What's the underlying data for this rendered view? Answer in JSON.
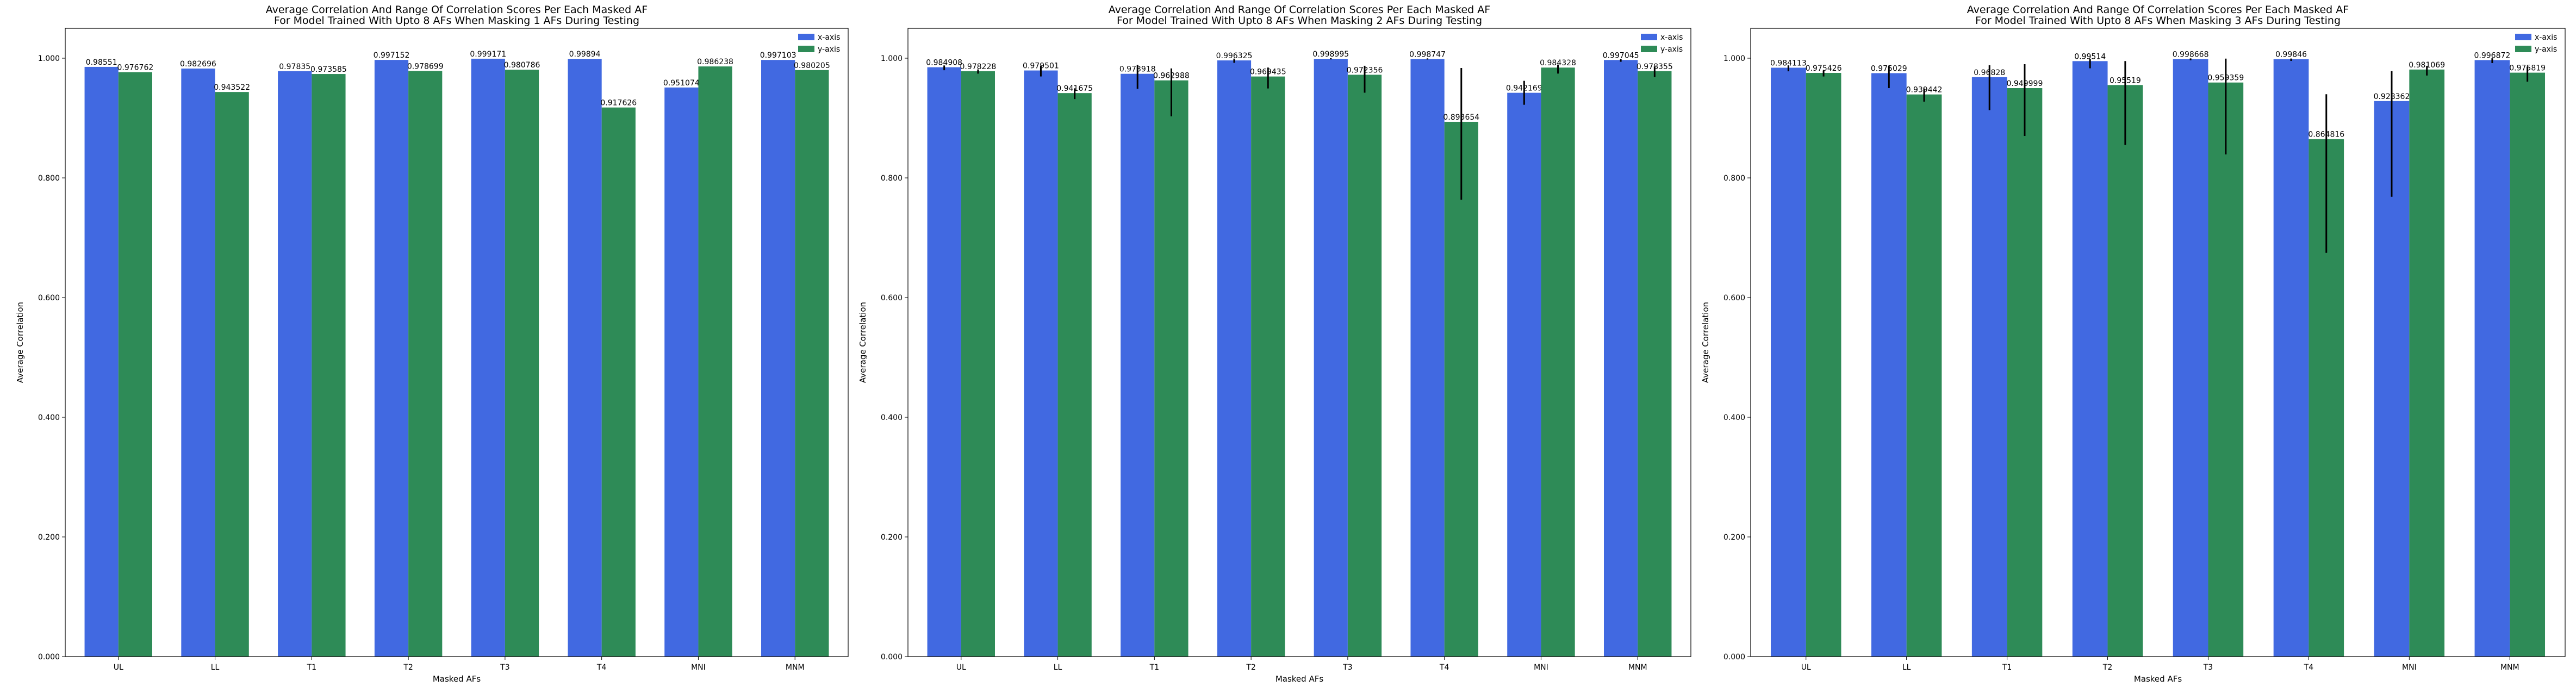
{
  "chart_data": [
    {
      "type": "bar",
      "title": "Average Correlation And Range Of Correlation Scores Per Each Masked AF",
      "subtitle": "For Model Trained With Upto 8 AFs When Masking 1 AFs During Testing",
      "xlabel": "Masked AFs",
      "ylabel": "Average Correlation",
      "categories": [
        "UL",
        "LL",
        "T1",
        "T2",
        "T3",
        "T4",
        "MNI",
        "MNM"
      ],
      "ylim": [
        0,
        1.05
      ],
      "yticks": [
        "0.000",
        "0.200",
        "0.400",
        "0.600",
        "0.800",
        "1.000"
      ],
      "legend_position": "top-right",
      "series": [
        {
          "name": "x-axis",
          "color": "#4169e1",
          "values": [
            0.98551,
            0.982696,
            0.97835,
            0.997152,
            0.999171,
            0.99894,
            0.951074,
            0.997103
          ],
          "labels": [
            "0.98551",
            "0.982696",
            "0.97835",
            "0.997152",
            "0.999171",
            "0.99894",
            "0.951074",
            "0.997103"
          ],
          "errors": [
            [
              0,
              0
            ],
            [
              0,
              0
            ],
            [
              0,
              0
            ],
            [
              0,
              0
            ],
            [
              0,
              0
            ],
            [
              0,
              0
            ],
            [
              0,
              0
            ],
            [
              0,
              0
            ]
          ]
        },
        {
          "name": "y-axis",
          "color": "#2e8b57",
          "values": [
            0.976762,
            0.943522,
            0.973585,
            0.978699,
            0.980786,
            0.917626,
            0.986238,
            0.980205
          ],
          "labels": [
            "0.976762",
            "0.943522",
            "0.973585",
            "0.978699",
            "0.980786",
            "0.917626",
            "0.986238",
            "0.980205"
          ],
          "errors": [
            [
              0,
              0
            ],
            [
              0,
              0
            ],
            [
              0,
              0
            ],
            [
              0,
              0
            ],
            [
              0,
              0
            ],
            [
              0,
              0
            ],
            [
              0,
              0
            ],
            [
              0,
              0
            ]
          ]
        }
      ]
    },
    {
      "type": "bar",
      "title": "Average Correlation And Range Of Correlation Scores Per Each Masked AF",
      "subtitle": "For Model Trained With Upto 8 AFs When Masking 2 AFs During Testing",
      "xlabel": "Masked AFs",
      "ylabel": "Average Correlation",
      "categories": [
        "UL",
        "LL",
        "T1",
        "T2",
        "T3",
        "T4",
        "MNI",
        "MNM"
      ],
      "ylim": [
        0,
        1.05
      ],
      "yticks": [
        "0.000",
        "0.200",
        "0.400",
        "0.600",
        "0.800",
        "1.000"
      ],
      "legend_position": "top-right",
      "series": [
        {
          "name": "x-axis",
          "color": "#4169e1",
          "values": [
            0.984908,
            0.979501,
            0.973918,
            0.996325,
            0.998995,
            0.998747,
            0.942169,
            0.997045
          ],
          "labels": [
            "0.984908",
            "0.979501",
            "0.973918",
            "0.996325",
            "0.998995",
            "0.998747",
            "0.942169",
            "0.997045"
          ],
          "errors": [
            [
              0.005,
              0.003
            ],
            [
              0.01,
              0.008
            ],
            [
              0.025,
              0.015
            ],
            [
              0.004,
              0.003
            ],
            [
              0.001,
              0.001
            ],
            [
              0.001,
              0.001
            ],
            [
              0.02,
              0.02
            ],
            [
              0.003,
              0.002
            ]
          ]
        },
        {
          "name": "y-axis",
          "color": "#2e8b57",
          "values": [
            0.978228,
            0.941675,
            0.962988,
            0.969435,
            0.972356,
            0.893654,
            0.984328,
            0.978355
          ],
          "labels": [
            "0.978228",
            "0.941675",
            "0.962988",
            "0.969435",
            "0.972356",
            "0.893654",
            "0.984328",
            "0.978355"
          ],
          "errors": [
            [
              0.004,
              0.003
            ],
            [
              0.01,
              0.008
            ],
            [
              0.06,
              0.02
            ],
            [
              0.02,
              0.015
            ],
            [
              0.03,
              0.015
            ],
            [
              0.13,
              0.09
            ],
            [
              0.01,
              0.005
            ],
            [
              0.01,
              0.008
            ]
          ]
        }
      ]
    },
    {
      "type": "bar",
      "title": "Average Correlation And Range Of Correlation Scores Per Each Masked AF",
      "subtitle": "For Model Trained With Upto 8 AFs When Masking 3 AFs During Testing",
      "xlabel": "Masked AFs",
      "ylabel": "Average Correlation",
      "categories": [
        "UL",
        "LL",
        "T1",
        "T2",
        "T3",
        "T4",
        "MNI",
        "MNM"
      ],
      "ylim": [
        0,
        1.05
      ],
      "yticks": [
        "0.000",
        "0.200",
        "0.400",
        "0.600",
        "0.800",
        "1.000"
      ],
      "legend_position": "top-right",
      "series": [
        {
          "name": "x-axis",
          "color": "#4169e1",
          "values": [
            0.984113,
            0.975029,
            0.96828,
            0.99514,
            0.998668,
            0.99846,
            0.928362,
            0.996872
          ],
          "labels": [
            "0.984113",
            "0.975029",
            "0.96828",
            "0.99514",
            "0.998668",
            "0.99846",
            "0.928362",
            "0.996872"
          ],
          "errors": [
            [
              0.006,
              0.004
            ],
            [
              0.025,
              0.012
            ],
            [
              0.055,
              0.02
            ],
            [
              0.012,
              0.004
            ],
            [
              0.002,
              0.001
            ],
            [
              0.003,
              0.001
            ],
            [
              0.16,
              0.05
            ],
            [
              0.005,
              0.003
            ]
          ]
        },
        {
          "name": "y-axis",
          "color": "#2e8b57",
          "values": [
            0.975426,
            0.939442,
            0.949999,
            0.95519,
            0.959359,
            0.864816,
            0.981069,
            0.975819
          ],
          "labels": [
            "0.975426",
            "0.939442",
            "0.949999",
            "0.95519",
            "0.959359",
            "0.864816",
            "0.981069",
            "0.975819"
          ],
          "errors": [
            [
              0.006,
              0.004
            ],
            [
              0.012,
              0.01
            ],
            [
              0.08,
              0.04
            ],
            [
              0.1,
              0.04
            ],
            [
              0.12,
              0.04
            ],
            [
              0.19,
              0.075
            ],
            [
              0.01,
              0.006
            ],
            [
              0.015,
              0.01
            ]
          ]
        }
      ]
    }
  ]
}
